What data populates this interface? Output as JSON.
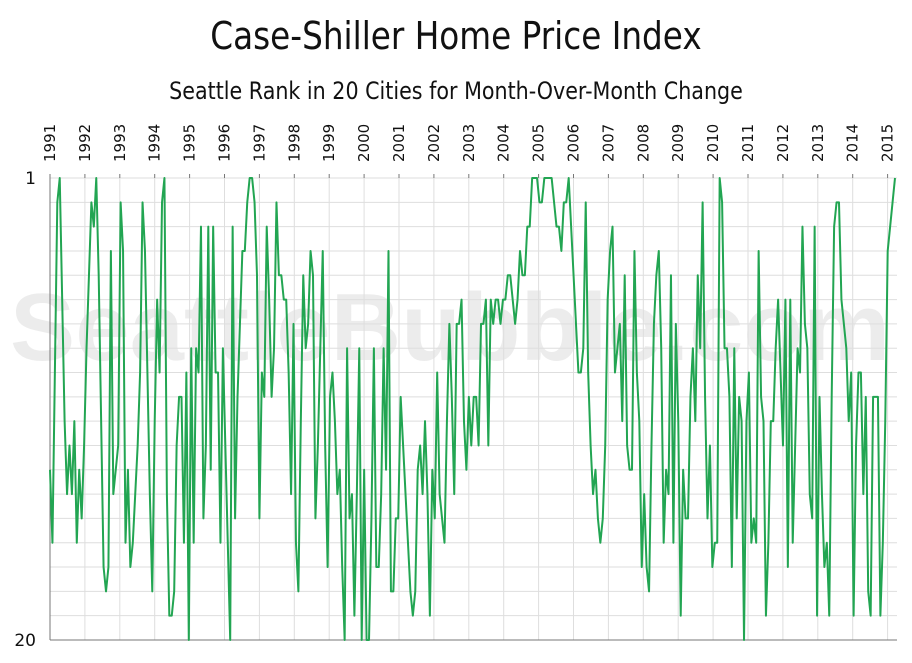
{
  "colors": {
    "line": "#22a552",
    "grid": "#dedede",
    "axis": "#777777"
  },
  "watermark": "SeattleBubble.com",
  "chart_data": {
    "type": "line",
    "title": "Case-Shiller Home Price Index",
    "subtitle": "Seattle Rank in 20 Cities for Month-Over-Month Change",
    "xlabel": "",
    "ylabel": "",
    "x_ticks": [
      "1991",
      "1992",
      "1993",
      "1994",
      "1995",
      "1996",
      "1997",
      "1998",
      "1999",
      "2000",
      "2001",
      "2002",
      "2003",
      "2004",
      "2005",
      "2006",
      "2007",
      "2008",
      "2009",
      "2010",
      "2011",
      "2012",
      "2013",
      "2014",
      "2015"
    ],
    "y_tick_labels": [
      "1",
      "20"
    ],
    "ylim": [
      20,
      1
    ],
    "y_inverted": true,
    "grid": true,
    "x_start": "1991-01",
    "x_end": "2015-03",
    "series": [
      {
        "values": [
          13,
          16,
          9,
          2,
          1,
          6,
          11,
          14,
          12,
          14,
          11,
          16,
          13,
          15,
          12,
          8,
          5,
          2,
          3,
          1,
          5,
          11,
          17,
          18,
          17,
          4,
          14,
          13,
          12,
          2,
          4,
          16,
          13,
          17,
          16,
          14,
          12,
          9,
          2,
          4,
          9,
          14,
          18,
          11,
          6,
          9,
          2,
          1,
          14,
          19,
          19,
          18,
          12,
          10,
          10,
          16,
          9,
          20,
          8,
          16,
          8,
          9,
          3,
          15,
          12,
          3,
          13,
          3,
          9,
          9,
          16,
          8,
          12,
          16,
          20,
          3,
          15,
          10,
          7,
          4,
          4,
          2,
          1,
          1,
          2,
          5,
          15,
          9,
          10,
          3,
          6,
          10,
          8,
          2,
          5,
          5,
          6,
          6,
          9,
          14,
          7,
          16,
          18,
          11,
          5,
          8,
          7,
          4,
          5,
          15,
          12,
          8,
          4,
          12,
          17,
          10,
          9,
          11,
          14,
          13,
          17,
          20,
          8,
          15,
          14,
          19,
          14,
          8,
          20,
          13,
          20,
          20,
          15,
          8,
          17,
          17,
          14,
          8,
          13,
          4,
          18,
          18,
          15,
          15,
          10,
          12,
          14,
          16,
          18,
          19,
          18,
          13,
          12,
          14,
          11,
          14,
          19,
          13,
          15,
          9,
          14,
          15,
          16,
          11,
          7,
          10,
          14,
          7,
          7,
          6,
          11,
          13,
          10,
          12,
          10,
          10,
          12,
          7,
          7,
          6,
          12,
          6,
          7,
          6,
          6,
          7,
          6,
          6,
          5,
          5,
          6,
          7,
          6,
          4,
          5,
          5,
          3,
          3,
          1,
          1,
          1,
          2,
          2,
          1,
          1,
          1,
          1,
          2,
          3,
          3,
          4,
          2,
          2,
          1,
          3,
          5,
          7,
          9,
          9,
          8,
          2,
          9,
          12,
          14,
          13,
          15,
          16,
          15,
          12,
          6,
          4,
          3,
          9,
          8,
          7,
          11,
          5,
          12,
          13,
          13,
          4,
          9,
          11,
          17,
          14,
          17,
          18,
          12,
          7,
          5,
          4,
          8,
          16,
          13,
          14,
          5,
          16,
          7,
          11,
          19,
          13,
          15,
          15,
          10,
          8,
          11,
          5,
          8,
          2,
          10,
          15,
          12,
          17,
          16,
          16,
          1,
          2,
          8,
          8,
          10,
          17,
          8,
          15,
          10,
          11,
          20,
          11,
          9,
          16,
          15,
          16,
          4,
          10,
          11,
          19,
          16,
          11,
          11,
          8,
          6,
          9,
          12,
          6,
          17,
          6,
          16,
          12,
          8,
          9,
          3,
          7,
          8,
          14,
          15,
          3,
          19,
          10,
          14,
          17,
          16,
          19,
          10,
          3,
          2,
          2,
          6,
          7,
          8,
          11,
          9,
          19,
          12,
          9,
          9,
          14,
          10,
          18,
          19,
          10,
          10,
          10,
          19,
          16,
          11,
          4,
          3,
          2,
          1
        ]
      }
    ]
  }
}
